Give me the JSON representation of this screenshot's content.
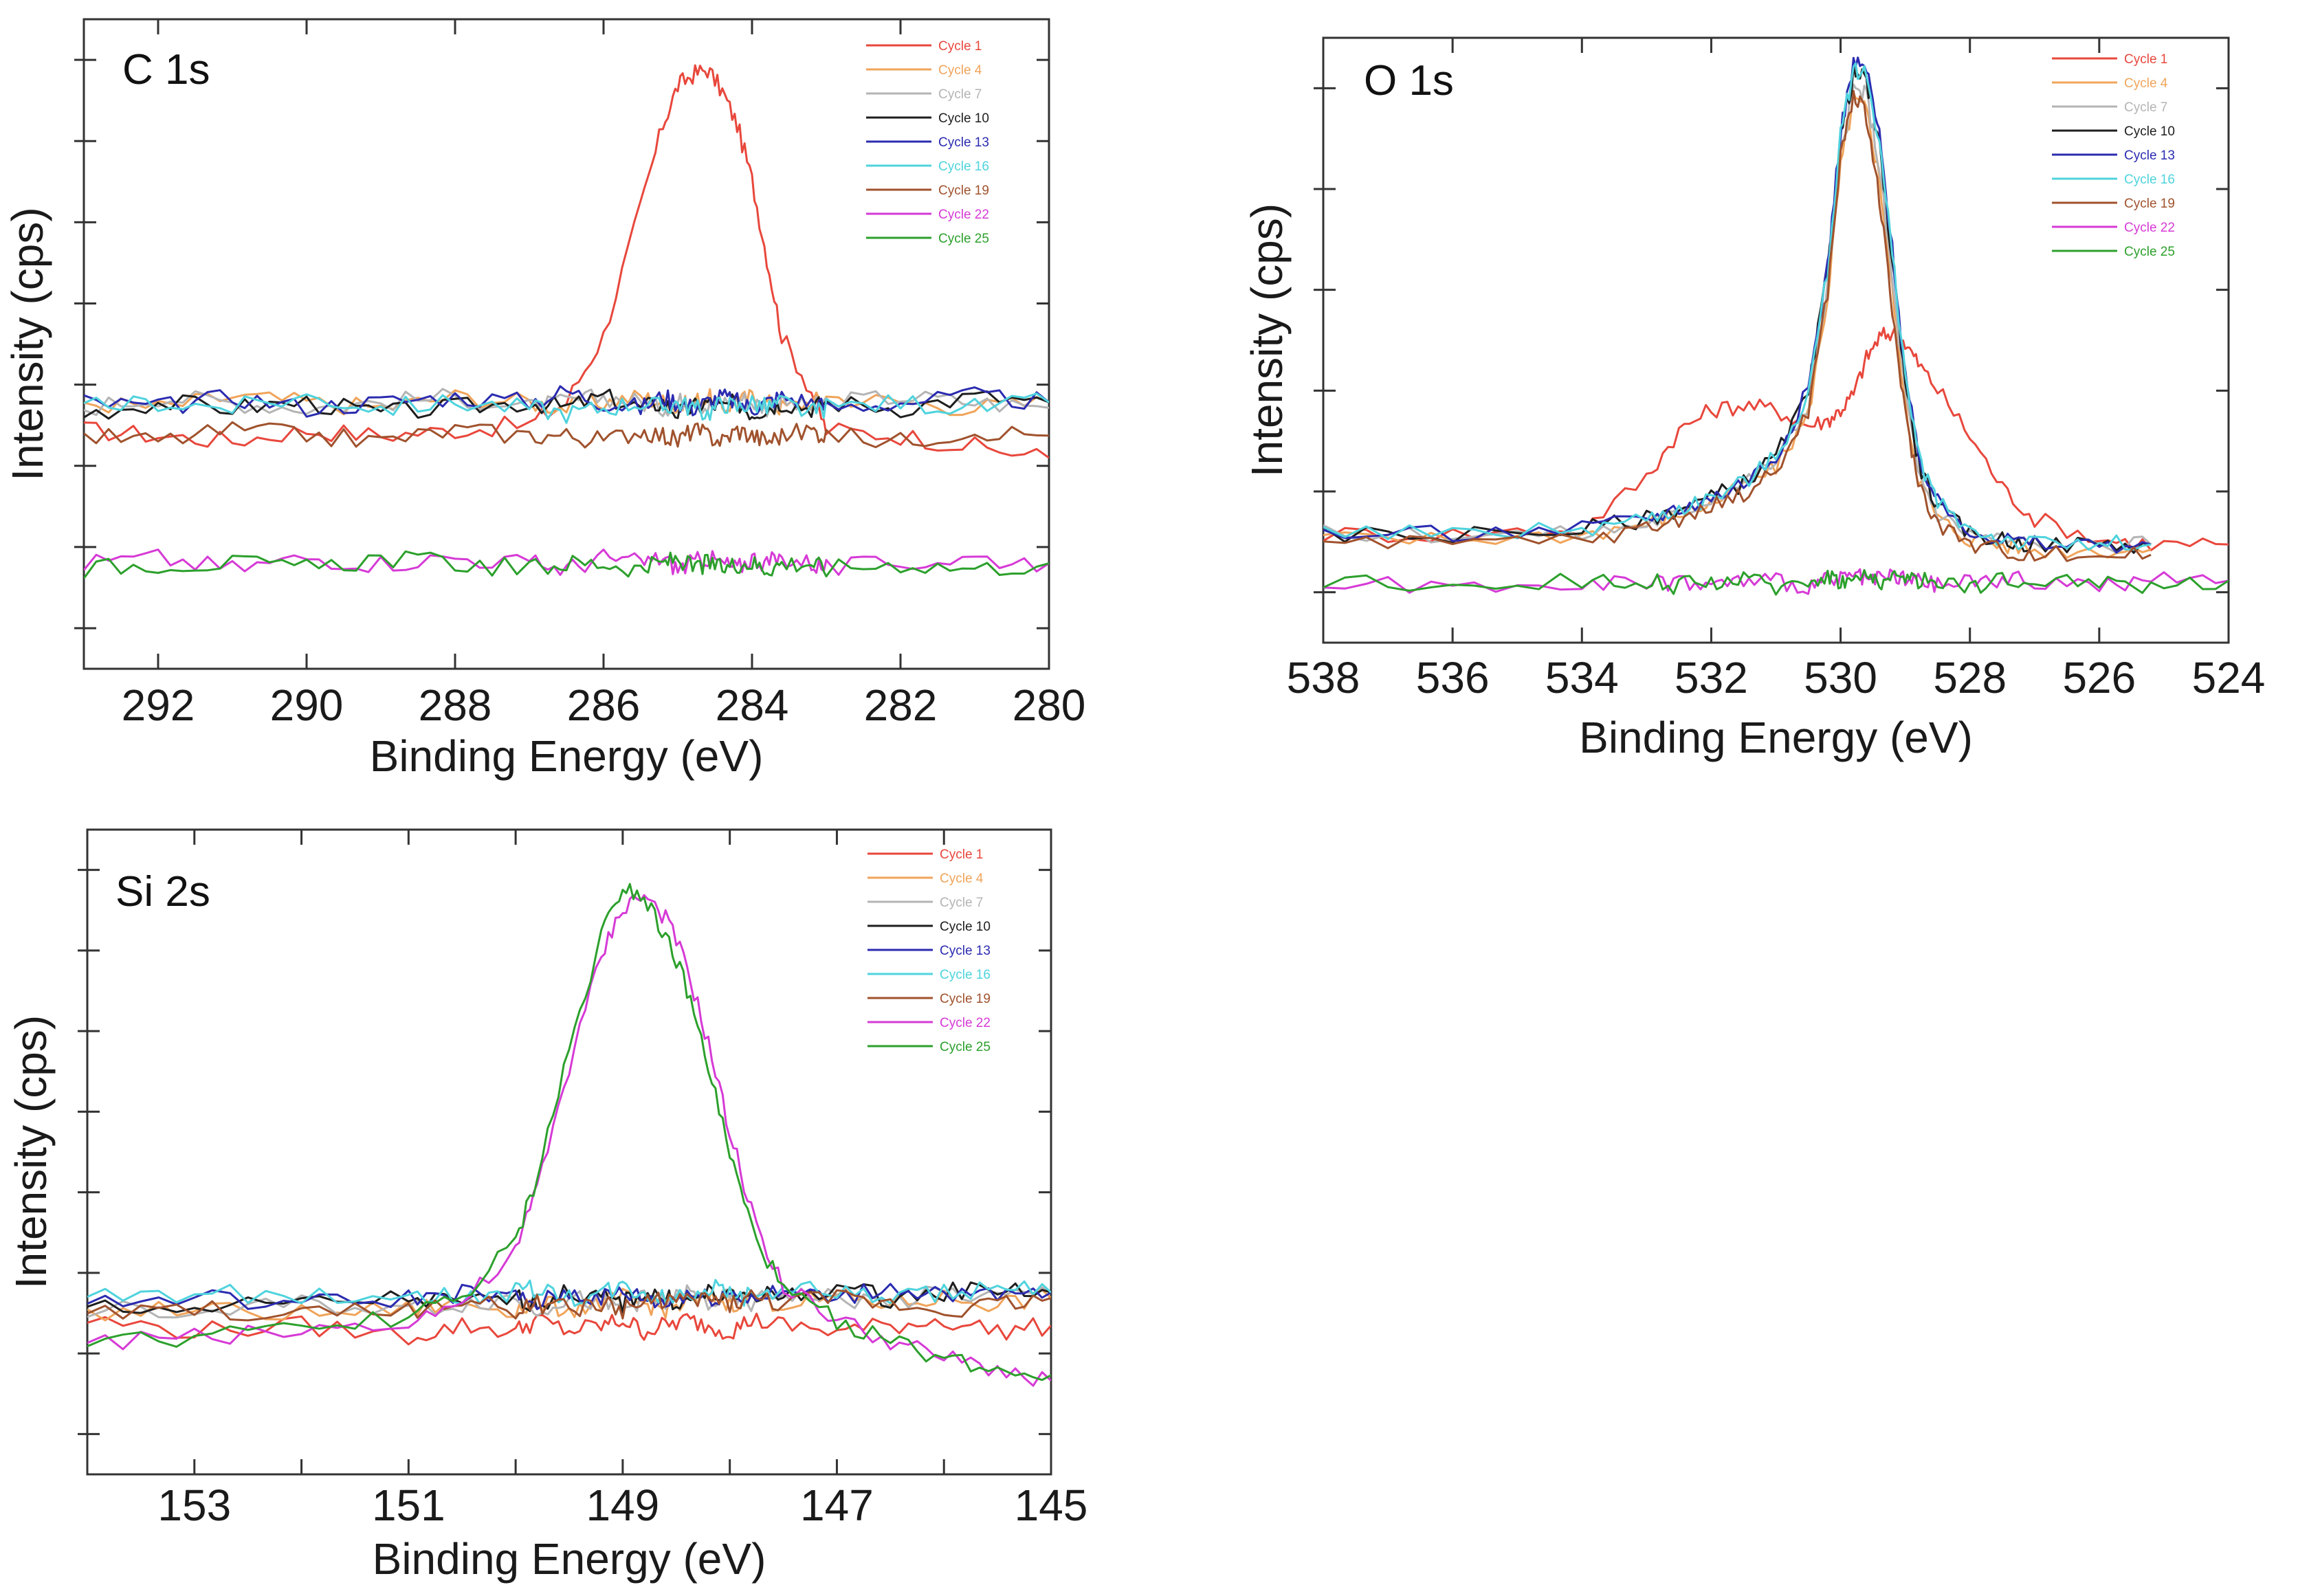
{
  "legend_names": [
    "Cycle 1",
    "Cycle 4",
    "Cycle 7",
    "Cycle 10",
    "Cycle 13",
    "Cycle 16",
    "Cycle 19",
    "Cycle 22",
    "Cycle 25"
  ],
  "palette": [
    "#e8473c",
    "#f0a45a",
    "#b4b4b4",
    "#1e1e1e",
    "#2b2bb0",
    "#4fd3dd",
    "#a0522d",
    "#d63ad6",
    "#2ca02c"
  ],
  "chart_data": [
    {
      "type": "line",
      "title": "C 1s",
      "xlabel": "Binding Energy (eV)",
      "ylabel": "Intensity (cps)",
      "xlim": [
        293,
        280
      ],
      "ylim": [
        0,
        1
      ],
      "x_ticks": [
        292,
        290,
        288,
        286,
        284,
        282,
        280
      ],
      "x_tick_labels": [
        "292",
        "290",
        "288",
        "286",
        "284",
        "282",
        "280"
      ],
      "y_ticks_unlabeled": 8,
      "grid": false,
      "legend": "top-right",
      "x": [
        293,
        292,
        291,
        290,
        289,
        288,
        287,
        286.5,
        286,
        285.5,
        285.2,
        285,
        284.8,
        284.6,
        284.4,
        284.2,
        284,
        283.8,
        283.6,
        283.2,
        283,
        282,
        281,
        280
      ],
      "series": [
        {
          "name": "Cycle 1",
          "values": [
            0.31,
            0.3,
            0.29,
            0.31,
            0.3,
            0.31,
            0.32,
            0.36,
            0.48,
            0.71,
            0.86,
            0.93,
            0.95,
            0.96,
            0.92,
            0.86,
            0.76,
            0.62,
            0.48,
            0.38,
            0.31,
            0.3,
            0.28,
            0.26
          ]
        },
        {
          "name": "Cycle 4",
          "values": [
            0.36,
            0.35,
            0.37,
            0.36,
            0.35,
            0.37,
            0.36,
            0.35,
            0.36,
            0.37,
            0.36,
            0.35,
            0.36,
            0.37,
            0.35,
            0.36,
            0.37,
            0.36,
            0.35,
            0.36,
            0.37,
            0.36,
            0.35,
            0.36
          ]
        },
        {
          "name": "Cycle 7",
          "values": [
            0.35,
            0.37,
            0.36,
            0.35,
            0.36,
            0.37,
            0.35,
            0.36,
            0.37,
            0.36,
            0.35,
            0.36,
            0.37,
            0.35,
            0.36,
            0.37,
            0.36,
            0.35,
            0.36,
            0.35,
            0.36,
            0.37,
            0.36,
            0.35
          ]
        },
        {
          "name": "Cycle 10",
          "values": [
            0.34,
            0.36,
            0.35,
            0.36,
            0.34,
            0.35,
            0.36,
            0.35,
            0.37,
            0.35,
            0.36,
            0.34,
            0.35,
            0.36,
            0.35,
            0.36,
            0.34,
            0.35,
            0.36,
            0.35,
            0.36,
            0.35,
            0.37,
            0.36
          ]
        },
        {
          "name": "Cycle 13",
          "values": [
            0.36,
            0.35,
            0.37,
            0.35,
            0.36,
            0.37,
            0.36,
            0.38,
            0.36,
            0.35,
            0.37,
            0.36,
            0.35,
            0.36,
            0.37,
            0.36,
            0.35,
            0.36,
            0.37,
            0.36,
            0.35,
            0.36,
            0.37,
            0.36
          ]
        },
        {
          "name": "Cycle 16",
          "values": [
            0.35,
            0.36,
            0.35,
            0.37,
            0.35,
            0.36,
            0.35,
            0.34,
            0.35,
            0.36,
            0.35,
            0.36,
            0.35,
            0.34,
            0.36,
            0.35,
            0.36,
            0.35,
            0.36,
            0.34,
            0.35,
            0.36,
            0.35,
            0.36
          ]
        },
        {
          "name": "Cycle 19",
          "values": [
            0.3,
            0.29,
            0.31,
            0.3,
            0.29,
            0.31,
            0.3,
            0.3,
            0.29,
            0.31,
            0.3,
            0.29,
            0.31,
            0.3,
            0.29,
            0.31,
            0.3,
            0.29,
            0.3,
            0.31,
            0.3,
            0.29,
            0.31,
            0.3
          ]
        },
        {
          "name": "Cycle 22",
          "values": [
            0.07,
            0.08,
            0.06,
            0.08,
            0.07,
            0.08,
            0.07,
            0.06,
            0.08,
            0.07,
            0.08,
            0.06,
            0.07,
            0.08,
            0.07,
            0.06,
            0.08,
            0.07,
            0.08,
            0.07,
            0.06,
            0.07,
            0.08,
            0.07
          ]
        },
        {
          "name": "Cycle 25",
          "values": [
            0.06,
            0.07,
            0.07,
            0.06,
            0.08,
            0.07,
            0.06,
            0.07,
            0.07,
            0.06,
            0.07,
            0.08,
            0.06,
            0.07,
            0.06,
            0.07,
            0.07,
            0.06,
            0.07,
            0.07,
            0.06,
            0.07,
            0.06,
            0.07
          ]
        }
      ]
    },
    {
      "type": "line",
      "title": "O 1s",
      "xlabel": "Binding Energy (eV)",
      "ylabel": "Intensity (cps)",
      "xlim": [
        538,
        524
      ],
      "ylim": [
        0,
        1
      ],
      "x_ticks": [
        538,
        536,
        534,
        532,
        530,
        528,
        526,
        524
      ],
      "x_tick_labels": [
        "538",
        "536",
        "534",
        "532",
        "530",
        "528",
        "526",
        "524"
      ],
      "y_ticks_unlabeled": 6,
      "grid": false,
      "legend": "top-right",
      "x": [
        538,
        536,
        534,
        533,
        532.5,
        532,
        531.5,
        531,
        530.5,
        530.2,
        530,
        529.8,
        529.6,
        529.4,
        529.2,
        529,
        528.8,
        528.5,
        528,
        527.5,
        527,
        526,
        525.2,
        524
      ],
      "series": [
        {
          "name": "Cycle 1",
          "values": [
            0.09,
            0.09,
            0.1,
            0.2,
            0.29,
            0.33,
            0.34,
            0.33,
            0.3,
            0.31,
            0.33,
            0.36,
            0.43,
            0.47,
            0.48,
            0.46,
            0.42,
            0.37,
            0.28,
            0.18,
            0.12,
            0.08,
            0.07,
            0.07
          ]
        },
        {
          "name": "Cycle 4",
          "values": [
            0.08,
            0.08,
            0.09,
            0.11,
            0.13,
            0.15,
            0.18,
            0.22,
            0.32,
            0.55,
            0.8,
            0.93,
            0.91,
            0.78,
            0.56,
            0.34,
            0.2,
            0.12,
            0.08,
            0.07,
            0.06,
            0.06,
            0.06,
            null
          ]
        },
        {
          "name": "Cycle 7",
          "values": [
            0.09,
            0.09,
            0.09,
            0.11,
            0.13,
            0.16,
            0.19,
            0.23,
            0.34,
            0.57,
            0.82,
            0.95,
            0.94,
            0.8,
            0.58,
            0.36,
            0.21,
            0.13,
            0.09,
            0.08,
            0.07,
            0.07,
            0.07,
            null
          ]
        },
        {
          "name": "Cycle 10",
          "values": [
            0.09,
            0.09,
            0.1,
            0.12,
            0.14,
            0.16,
            0.19,
            0.24,
            0.36,
            0.6,
            0.86,
            0.98,
            0.97,
            0.84,
            0.62,
            0.39,
            0.23,
            0.14,
            0.09,
            0.08,
            0.07,
            0.07,
            0.07,
            null
          ]
        },
        {
          "name": "Cycle 13",
          "values": [
            0.09,
            0.09,
            0.1,
            0.12,
            0.14,
            0.16,
            0.19,
            0.24,
            0.37,
            0.61,
            0.87,
            1.0,
            0.99,
            0.86,
            0.64,
            0.4,
            0.24,
            0.15,
            0.1,
            0.08,
            0.07,
            0.07,
            0.07,
            null
          ]
        },
        {
          "name": "Cycle 16",
          "values": [
            0.09,
            0.09,
            0.1,
            0.12,
            0.14,
            0.16,
            0.19,
            0.24,
            0.36,
            0.6,
            0.86,
            0.99,
            0.98,
            0.85,
            0.63,
            0.4,
            0.24,
            0.15,
            0.1,
            0.08,
            0.07,
            0.07,
            0.07,
            null
          ]
        },
        {
          "name": "Cycle 19",
          "values": [
            0.07,
            0.07,
            0.08,
            0.1,
            0.12,
            0.14,
            0.17,
            0.21,
            0.33,
            0.56,
            0.82,
            0.94,
            0.9,
            0.74,
            0.52,
            0.32,
            0.19,
            0.11,
            0.07,
            0.06,
            0.05,
            0.05,
            0.05,
            null
          ]
        },
        {
          "name": "Cycle 22",
          "values": [
            -0.01,
            -0.01,
            0.0,
            -0.01,
            0.0,
            -0.01,
            0.0,
            0.0,
            -0.01,
            0.0,
            0.0,
            0.01,
            0.0,
            0.0,
            0.01,
            0.0,
            0.0,
            -0.01,
            0.0,
            0.0,
            0.0,
            -0.01,
            0.0,
            0.0
          ]
        },
        {
          "name": "Cycle 25",
          "values": [
            0.0,
            -0.01,
            0.0,
            0.0,
            -0.01,
            0.0,
            0.0,
            -0.01,
            0.0,
            0.01,
            0.0,
            0.0,
            0.01,
            0.0,
            0.0,
            0.01,
            0.0,
            0.0,
            -0.01,
            0.0,
            0.0,
            0.0,
            -0.01,
            0.0
          ]
        }
      ]
    },
    {
      "type": "line",
      "title": "Si 2s",
      "xlabel": "Binding Energy (eV)",
      "ylabel": "Intensity (cps)",
      "xlim": [
        154,
        145
      ],
      "ylim": [
        0,
        1
      ],
      "x_ticks": [
        153,
        152,
        151,
        150,
        149,
        148,
        147,
        146,
        145
      ],
      "x_tick_labels": [
        "153",
        "",
        "151",
        "",
        "149",
        "",
        "147",
        "",
        "145"
      ],
      "y_ticks_unlabeled": 8,
      "grid": false,
      "legend": "top-right",
      "x": [
        154,
        153,
        152,
        151,
        150.5,
        150,
        149.8,
        149.5,
        149.2,
        149.0,
        148.8,
        148.6,
        148.4,
        148.2,
        148.0,
        147.8,
        147.5,
        147,
        146.5,
        146,
        145.5,
        145
      ],
      "series": [
        {
          "name": "Cycle 1",
          "values": [
            0.16,
            0.14,
            0.15,
            0.13,
            0.15,
            0.14,
            0.16,
            0.14,
            0.15,
            0.16,
            0.14,
            0.15,
            0.16,
            0.15,
            0.14,
            0.16,
            0.15,
            0.14,
            0.15,
            0.16,
            0.14,
            0.15
          ]
        },
        {
          "name": "Cycle 4",
          "values": [
            0.17,
            0.18,
            0.17,
            0.18,
            0.19,
            0.18,
            0.19,
            0.18,
            0.19,
            0.2,
            0.19,
            0.18,
            0.19,
            0.2,
            0.19,
            0.2,
            0.19,
            0.2,
            0.19,
            0.2,
            0.19,
            0.2
          ]
        },
        {
          "name": "Cycle 7",
          "values": [
            0.18,
            0.17,
            0.19,
            0.18,
            0.19,
            0.2,
            0.18,
            0.2,
            0.19,
            0.18,
            0.2,
            0.19,
            0.21,
            0.19,
            0.2,
            0.19,
            0.21,
            0.2,
            0.19,
            0.21,
            0.2,
            0.21
          ]
        },
        {
          "name": "Cycle 10",
          "values": [
            0.19,
            0.18,
            0.19,
            0.2,
            0.19,
            0.2,
            0.19,
            0.21,
            0.2,
            0.19,
            0.21,
            0.2,
            0.19,
            0.21,
            0.2,
            0.21,
            0.2,
            0.22,
            0.2,
            0.21,
            0.22,
            0.21
          ]
        },
        {
          "name": "Cycle 13",
          "values": [
            0.19,
            0.2,
            0.19,
            0.2,
            0.21,
            0.2,
            0.19,
            0.21,
            0.2,
            0.21,
            0.2,
            0.19,
            0.21,
            0.2,
            0.21,
            0.2,
            0.21,
            0.2,
            0.22,
            0.21,
            0.2,
            0.21
          ]
        },
        {
          "name": "Cycle 16",
          "values": [
            0.2,
            0.21,
            0.2,
            0.21,
            0.2,
            0.21,
            0.22,
            0.2,
            0.21,
            0.22,
            0.21,
            0.2,
            0.21,
            0.22,
            0.21,
            0.2,
            0.22,
            0.21,
            0.2,
            0.21,
            0.22,
            0.21
          ]
        },
        {
          "name": "Cycle 19",
          "values": [
            0.17,
            0.18,
            0.17,
            0.18,
            0.19,
            0.18,
            0.19,
            0.18,
            0.19,
            0.18,
            0.19,
            0.2,
            0.19,
            0.2,
            0.19,
            0.2,
            0.19,
            0.2,
            0.19,
            0.18,
            0.19,
            0.2
          ]
        },
        {
          "name": "Cycle 22",
          "values": [
            0.12,
            0.13,
            0.14,
            0.16,
            0.19,
            0.28,
            0.4,
            0.62,
            0.82,
            0.91,
            0.93,
            0.89,
            0.8,
            0.66,
            0.5,
            0.36,
            0.22,
            0.16,
            0.12,
            0.09,
            0.07,
            0.05
          ]
        },
        {
          "name": "Cycle 25",
          "values": [
            0.12,
            0.13,
            0.14,
            0.17,
            0.2,
            0.3,
            0.42,
            0.65,
            0.86,
            0.95,
            0.93,
            0.86,
            0.76,
            0.62,
            0.46,
            0.33,
            0.21,
            0.16,
            0.12,
            0.09,
            0.07,
            0.06
          ]
        }
      ]
    }
  ]
}
